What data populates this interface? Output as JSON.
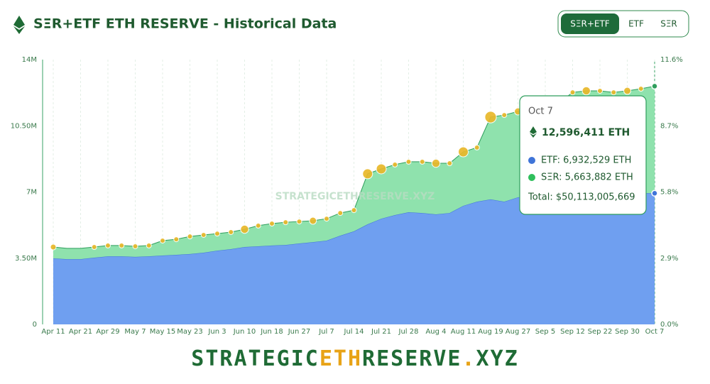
{
  "header": {
    "title": "SΞR+ETF ETH RESERVE - Historical Data"
  },
  "toggle": {
    "options": [
      "SΞR+ETF",
      "ETF",
      "SΞR"
    ],
    "active": 0
  },
  "chart_data": {
    "type": "stacked-area",
    "categories": [
      "Apr 11",
      null,
      "Apr 21",
      null,
      "Apr 29",
      null,
      "May 7",
      null,
      "May 15",
      null,
      "May 23",
      null,
      "Jun 3",
      null,
      "Jun 10",
      null,
      "Jun 18",
      null,
      "Jun 27",
      null,
      "Jul 7",
      null,
      "Jul 14",
      null,
      "Jul 21",
      null,
      "Jul 28",
      null,
      "Aug 4",
      null,
      "Aug 11",
      null,
      "Aug 19",
      null,
      "Aug 27",
      null,
      "Sep 5",
      null,
      "Sep 12",
      null,
      "Sep 22",
      null,
      "Sep 30",
      null,
      "Oct 7"
    ],
    "series": [
      {
        "name": "ETF",
        "color": "#6f9ff0",
        "line_color": "#3f74d8",
        "values": [
          3490000,
          3450000,
          3450000,
          3530000,
          3600000,
          3600000,
          3570000,
          3600000,
          3640000,
          3680000,
          3720000,
          3790000,
          3900000,
          3980000,
          4090000,
          4130000,
          4170000,
          4200000,
          4280000,
          4350000,
          4430000,
          4690000,
          4920000,
          5290000,
          5590000,
          5780000,
          5930000,
          5890000,
          5820000,
          5890000,
          6270000,
          6490000,
          6610000,
          6490000,
          6720000,
          6790000,
          6830000,
          6830000,
          6760000,
          6830000,
          6790000,
          6870000,
          6870000,
          6940000,
          6932529
        ]
      },
      {
        "name": "SΞR",
        "color": "#8fe2ad",
        "line_color": "#2f9e5c",
        "values": [
          600000,
          570000,
          570000,
          560000,
          570000,
          570000,
          560000,
          570000,
          790000,
          820000,
          930000,
          940000,
          900000,
          900000,
          940000,
          1090000,
          1160000,
          1200000,
          1160000,
          1130000,
          1160000,
          1200000,
          1120000,
          2670000,
          2630000,
          2670000,
          2670000,
          2710000,
          2700000,
          2630000,
          2850000,
          2860000,
          4350000,
          4580000,
          4540000,
          4660000,
          4770000,
          4880000,
          5510000,
          5520000,
          5560000,
          5400000,
          5480000,
          5520000,
          5663882
        ]
      }
    ],
    "bubble_color": "#e9b82a",
    "bubble_sizes": [
      20000,
      null,
      null,
      15000,
      15000,
      15000,
      15000,
      15000,
      15000,
      15000,
      15000,
      15000,
      15000,
      15000,
      40000,
      15000,
      15000,
      15000,
      15000,
      30000,
      15000,
      15000,
      15000,
      60000,
      60000,
      15000,
      15000,
      15000,
      40000,
      15000,
      60000,
      15000,
      80000,
      15000,
      30000,
      15000,
      15000,
      15000,
      15000,
      40000,
      15000,
      15000,
      30000,
      15000,
      null
    ],
    "ylim": [
      0,
      14000000
    ],
    "yticks": [
      {
        "value": 0,
        "label": "0"
      },
      {
        "value": 3500000,
        "label": "3.50M"
      },
      {
        "value": 7000000,
        "label": "7M"
      },
      {
        "value": 10500000,
        "label": "10.50M"
      },
      {
        "value": 14000000,
        "label": "14M"
      }
    ],
    "y2lim": [
      0,
      11.6
    ],
    "y2ticks": [
      {
        "value": 0,
        "label": "0.0%"
      },
      {
        "value": 2.9,
        "label": "2.9%"
      },
      {
        "value": 5.8,
        "label": "5.8%"
      },
      {
        "value": 8.7,
        "label": "8.7%"
      },
      {
        "value": 11.6,
        "label": "11.6%"
      }
    ],
    "grid": true
  },
  "tooltip": {
    "date": "Oct 7",
    "total": "12,596,411 ETH",
    "etf": "ETF: 6,932,529 ETH",
    "ser": "SΞR: 5,663,882 ETH",
    "usd": "Total: $50,113,005,669"
  },
  "watermark": "STRATEGICETHRESERVE.XYZ",
  "footer": {
    "parts": [
      "STRATEGIC",
      "ETH",
      "RESERVE",
      ".",
      "XYZ"
    ]
  }
}
